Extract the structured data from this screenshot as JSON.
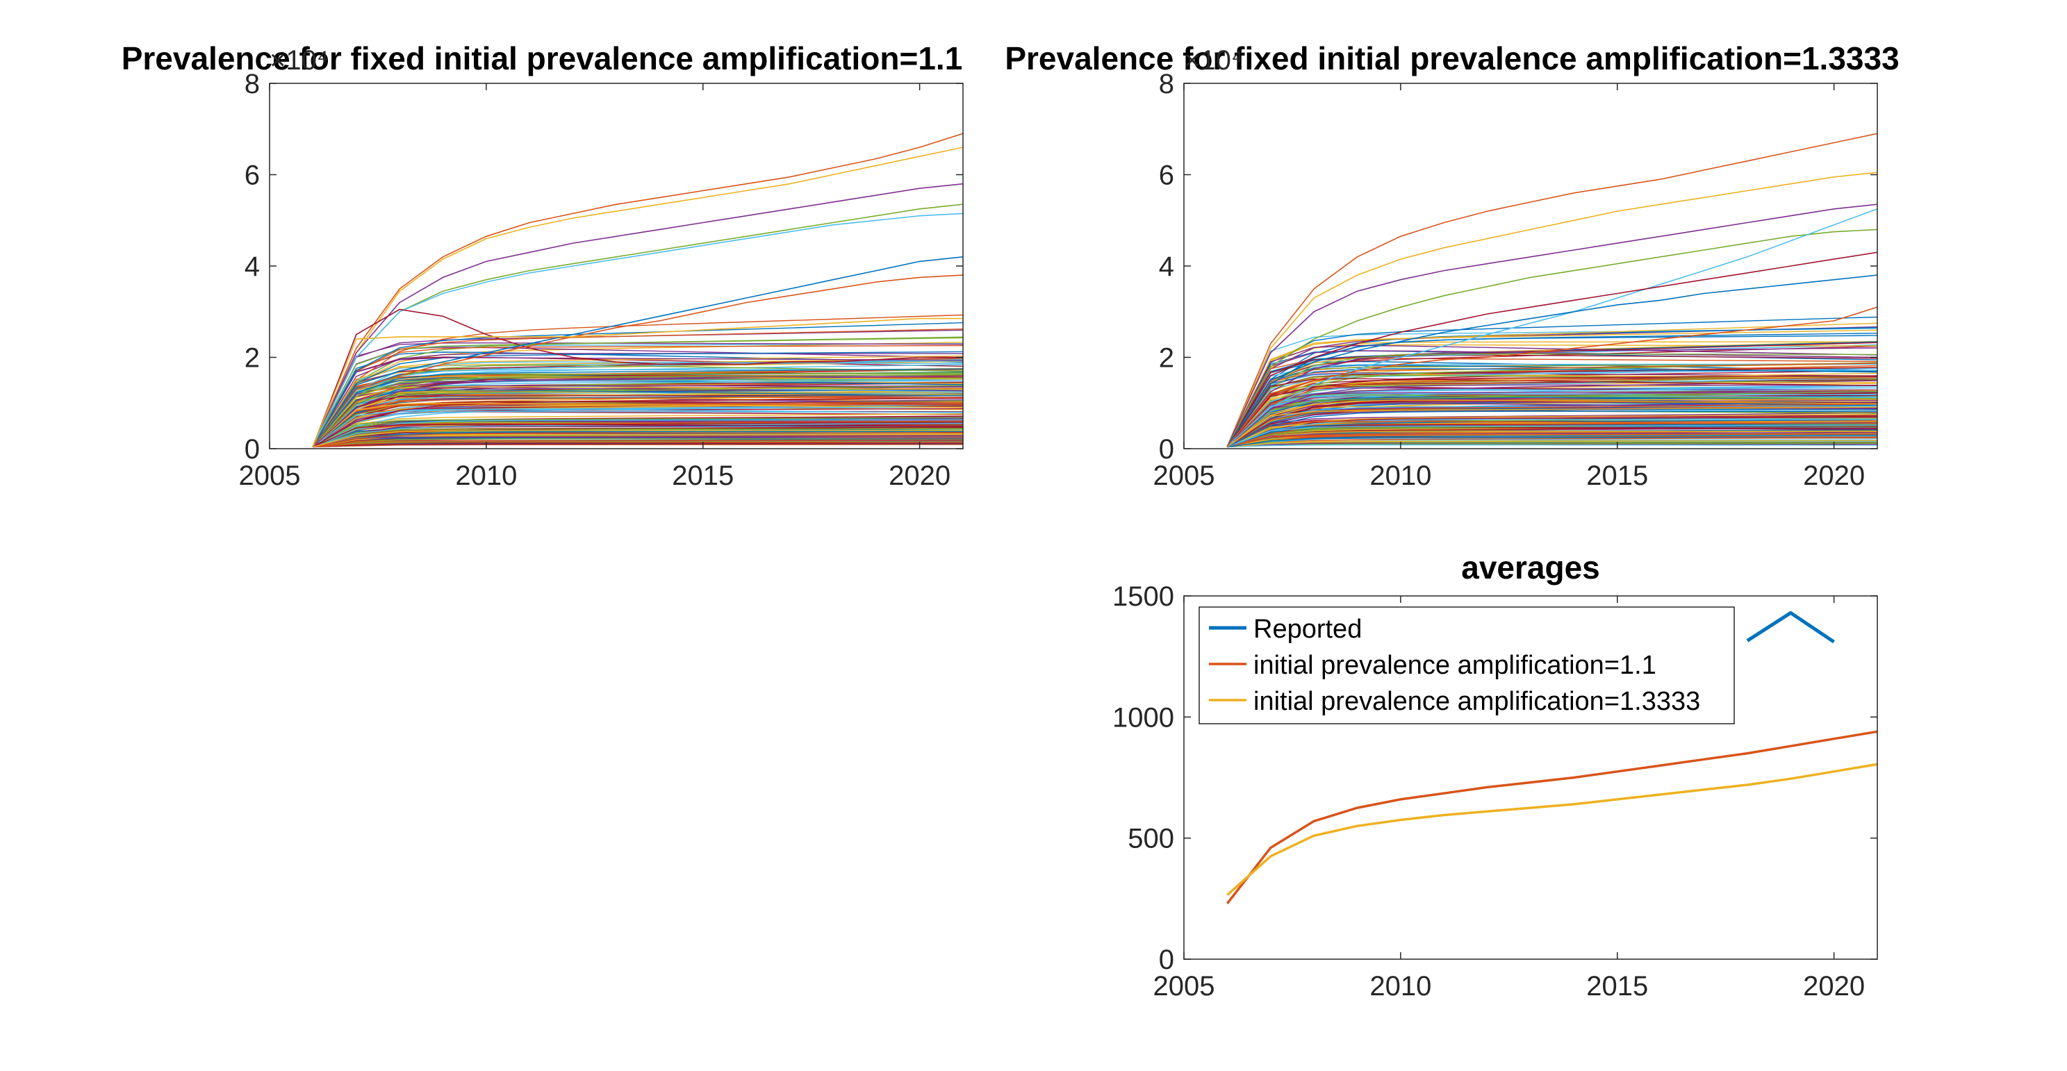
{
  "chart_data": [
    {
      "type": "line",
      "title": "Prevalence for fixed initial prevalence amplification=1.1",
      "xlim": [
        2005,
        2021
      ],
      "ylim": [
        0,
        80000
      ],
      "x_ticks": [
        "2005",
        "2010",
        "2015",
        "2020"
      ],
      "y_ticks": [
        "0",
        "2",
        "4",
        "6",
        "8"
      ],
      "y_exponent": "×10⁴",
      "x": [
        2006,
        2007,
        2008,
        2009,
        2010,
        2011,
        2012,
        2013,
        2014,
        2015,
        2016,
        2017,
        2018,
        2019,
        2020,
        2021
      ],
      "series_note": "many simulation runs (ensemble)",
      "series_highlights": [
        {
          "values": [
            500,
            22000,
            35000,
            42000,
            46500,
            49500,
            51500,
            53500,
            55000,
            56500,
            58000,
            59500,
            61500,
            63500,
            66000,
            69000
          ]
        },
        {
          "values": [
            500,
            21000,
            34500,
            41500,
            46000,
            48500,
            50500,
            52000,
            53500,
            55000,
            56500,
            58000,
            60000,
            62000,
            64000,
            66000
          ]
        },
        {
          "values": [
            500,
            21000,
            32000,
            37500,
            41000,
            43000,
            45000,
            46500,
            48000,
            49500,
            51000,
            52500,
            54000,
            55500,
            57000,
            58000
          ]
        },
        {
          "values": [
            500,
            20000,
            30000,
            34500,
            37000,
            39000,
            40500,
            42000,
            43500,
            45000,
            46500,
            48000,
            49500,
            51000,
            52500,
            53500
          ]
        },
        {
          "values": [
            500,
            20000,
            30000,
            34000,
            36500,
            38500,
            40000,
            41500,
            43000,
            44500,
            46000,
            47500,
            49000,
            50000,
            51000,
            51500
          ]
        },
        {
          "values": [
            500,
            25000,
            30500,
            29000,
            25000,
            22000,
            20000,
            19000,
            18500,
            18500,
            18500,
            19000,
            19000,
            19500,
            20000,
            20000
          ]
        },
        {
          "values": [
            500,
            14000,
            17000,
            19000,
            21000,
            23000,
            25000,
            27000,
            29000,
            31000,
            33000,
            35000,
            37000,
            39000,
            41000,
            42000
          ]
        },
        {
          "values": [
            500,
            13000,
            16000,
            18500,
            20500,
            22500,
            24500,
            26500,
            28000,
            30000,
            32000,
            33500,
            35000,
            36500,
            37500,
            38000
          ]
        },
        {
          "values": [
            500,
            24000,
            24500,
            24500,
            24500,
            24500,
            24500,
            25000,
            25500,
            26000,
            26500,
            27000,
            27500,
            28000,
            28500,
            28500
          ]
        }
      ]
    },
    {
      "type": "line",
      "title": "Prevalence for fixed initial prevalence amplification=1.3333",
      "xlim": [
        2005,
        2021
      ],
      "ylim": [
        0,
        80000
      ],
      "x_ticks": [
        "2005",
        "2010",
        "2015",
        "2020"
      ],
      "y_ticks": [
        "0",
        "2",
        "4",
        "6",
        "8"
      ],
      "y_exponent": "×10⁴",
      "x": [
        2006,
        2007,
        2008,
        2009,
        2010,
        2011,
        2012,
        2013,
        2014,
        2015,
        2016,
        2017,
        2018,
        2019,
        2020,
        2021
      ],
      "series_note": "many simulation runs (ensemble)",
      "series_highlights": [
        {
          "values": [
            500,
            23000,
            35000,
            42000,
            46500,
            49500,
            52000,
            54000,
            56000,
            57500,
            59000,
            61000,
            63000,
            65000,
            67000,
            69000
          ]
        },
        {
          "values": [
            500,
            22000,
            33000,
            38000,
            41500,
            44000,
            46000,
            48000,
            50000,
            52000,
            53500,
            55000,
            56500,
            58000,
            59500,
            60500
          ]
        },
        {
          "values": [
            500,
            21000,
            30000,
            34500,
            37000,
            39000,
            40500,
            42000,
            43500,
            45000,
            46500,
            48000,
            49500,
            51000,
            52500,
            53500
          ]
        },
        {
          "values": [
            500,
            18000,
            24000,
            28000,
            31000,
            33500,
            35500,
            37500,
            39000,
            40500,
            42000,
            43500,
            45000,
            46500,
            47500,
            48000
          ]
        },
        {
          "values": [
            500,
            9000,
            14000,
            17500,
            20000,
            22500,
            25000,
            27500,
            30000,
            33000,
            36000,
            39000,
            42000,
            45500,
            49000,
            52500
          ]
        },
        {
          "values": [
            500,
            16000,
            20000,
            23000,
            25500,
            27500,
            29500,
            31000,
            32500,
            34000,
            35500,
            37000,
            38500,
            40000,
            41500,
            43000
          ]
        },
        {
          "values": [
            500,
            15000,
            19000,
            21500,
            23500,
            25500,
            27000,
            28500,
            30000,
            31500,
            32500,
            34000,
            35000,
            36000,
            37000,
            38000
          ]
        },
        {
          "values": [
            500,
            12000,
            15000,
            17000,
            18500,
            19500,
            20000,
            21000,
            22000,
            23000,
            24000,
            25000,
            26000,
            27000,
            28000,
            31000
          ]
        }
      ]
    },
    {
      "type": "line",
      "title": "averages",
      "xlim": [
        2005,
        2021
      ],
      "ylim": [
        0,
        1500
      ],
      "x_ticks": [
        "2005",
        "2010",
        "2015",
        "2020"
      ],
      "y_ticks": [
        "0",
        "500",
        "1000",
        "1500"
      ],
      "legend_position": "top-left",
      "series": [
        {
          "name": "Reported",
          "color": "#0072bd",
          "x": [
            2018,
            2019,
            2020
          ],
          "values": [
            1315,
            1430,
            1310
          ]
        },
        {
          "name": "initial prevalence amplification=1.1",
          "color": "#d95319",
          "x": [
            2006,
            2007,
            2008,
            2009,
            2010,
            2011,
            2012,
            2013,
            2014,
            2015,
            2016,
            2017,
            2018,
            2019,
            2020,
            2021
          ],
          "values": [
            230,
            460,
            570,
            625,
            660,
            685,
            710,
            730,
            750,
            775,
            800,
            825,
            850,
            880,
            910,
            940
          ]
        },
        {
          "name": "initial prevalence amplification=1.3333",
          "color": "#edb120",
          "x": [
            2006,
            2007,
            2008,
            2009,
            2010,
            2011,
            2012,
            2013,
            2014,
            2015,
            2016,
            2017,
            2018,
            2019,
            2020,
            2021
          ],
          "values": [
            265,
            425,
            510,
            550,
            575,
            595,
            610,
            625,
            640,
            660,
            680,
            700,
            720,
            745,
            775,
            805
          ]
        }
      ]
    }
  ]
}
